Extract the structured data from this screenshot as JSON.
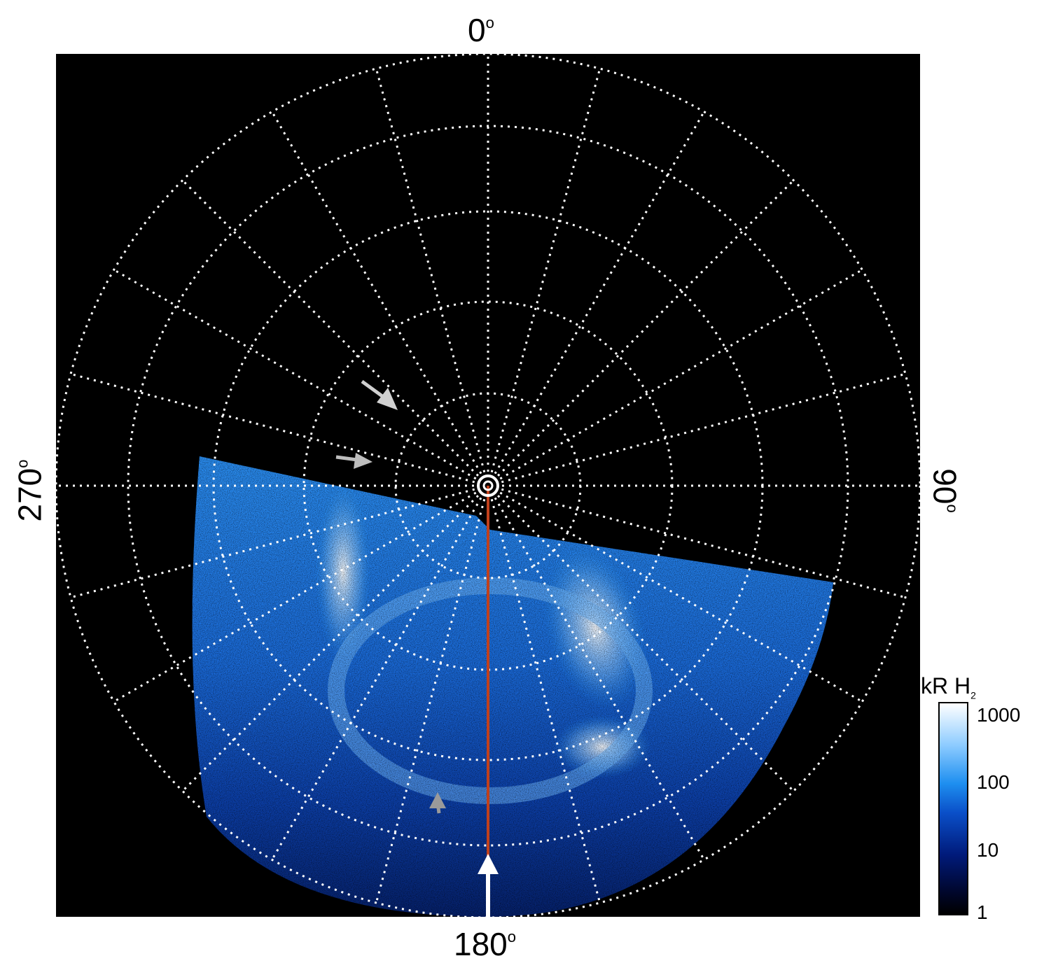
{
  "labels": {
    "top": "0",
    "bottom": "180",
    "left": "270",
    "right": "90",
    "degree_symbol": "o"
  },
  "colorbar": {
    "title": "kR H",
    "title_sub": "2",
    "ticks": [
      "1000",
      "100",
      "10",
      "1"
    ],
    "scale": "log"
  },
  "colors": {
    "background": "#000000",
    "grid": "#ffffff",
    "meridian_line": "#c0401c",
    "arrow_gray": "#bdbdbd",
    "aurora_dark": "#001a7a",
    "aurora_mid": "#1e8ff0",
    "aurora_bright": "#ffffff"
  },
  "icons": [
    "arrow-icon",
    "arrow-icon",
    "arrow-icon",
    "arrow-up-icon",
    "pole-marker-icon"
  ]
}
